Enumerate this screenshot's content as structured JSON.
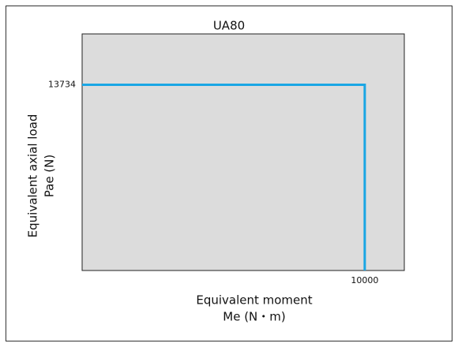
{
  "chart_data": {
    "type": "line",
    "title": "UA80",
    "xlabel": [
      "Equivalent moment",
      "Me (N・m)"
    ],
    "ylabel": [
      "Equivalent axial load",
      "Pae (N)"
    ],
    "x": [
      0,
      10000,
      10000
    ],
    "series": [
      {
        "color": "#1aa6e4",
        "values": [
          13734,
          13734,
          0
        ]
      }
    ],
    "xlim": [
      0,
      11400
    ],
    "xticks": [
      10000
    ],
    "ylim": [
      0,
      17500
    ],
    "yticks": [
      13734
    ],
    "background": "#dcdcdc"
  }
}
